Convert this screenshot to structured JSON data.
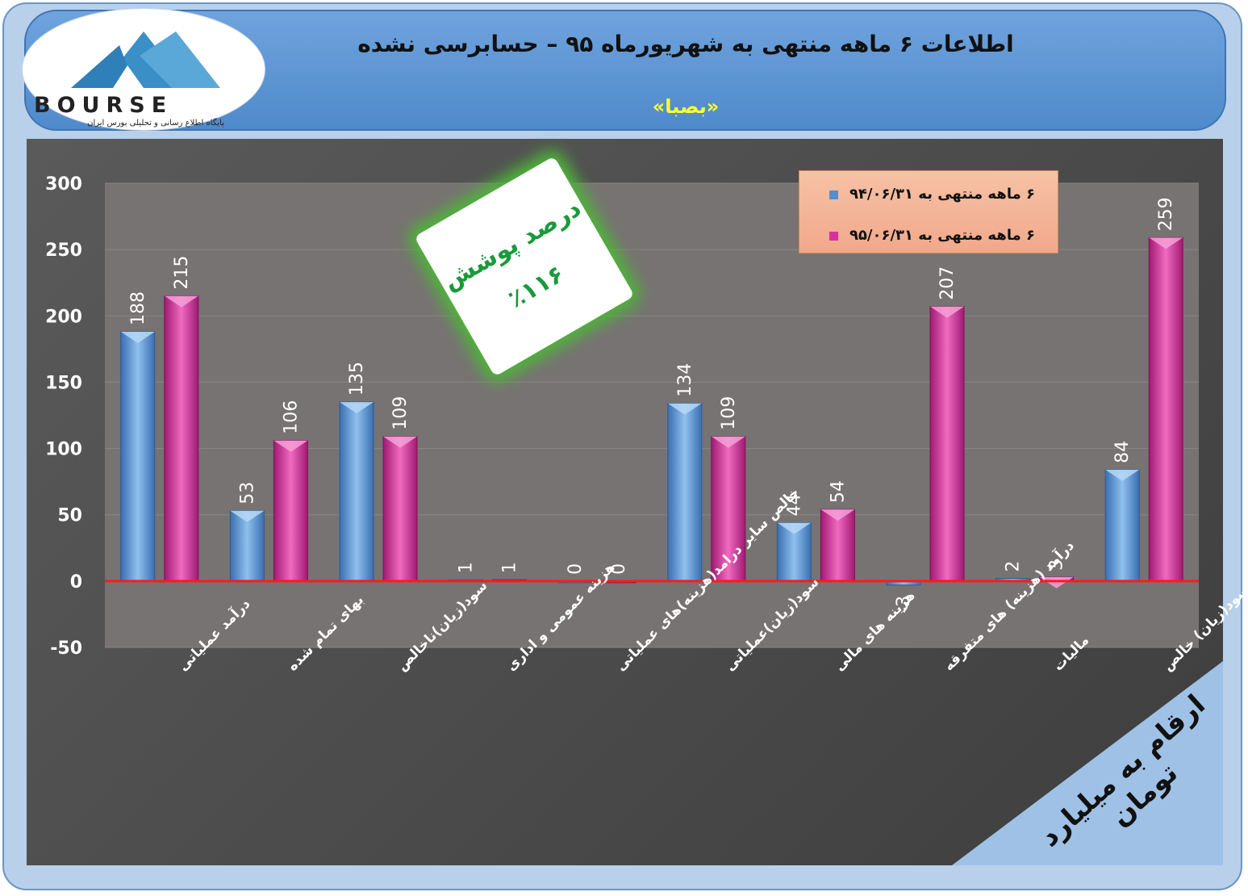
{
  "header": {
    "title": "اطلاعات ۶  ماهه منتهی به شهریورماه ۹۵ – حسابرسی نشده",
    "symbol": "«بصبا»"
  },
  "logo": {
    "word": "BOURSE",
    "tagline": "پایگاه اطلاع رسانی و تحلیلی بورس ایران"
  },
  "stamp": {
    "line1": "درصد پوشش",
    "line2": "٪۱۱۶"
  },
  "unit_note": "ارقام به میلیارد تومان",
  "colors": {
    "series1": "#4f8fd6",
    "series2": "#d6339a",
    "zero_line": "#ff1a1a",
    "plot_bg": "#777372"
  },
  "chart_data": {
    "type": "bar",
    "categories": [
      "درآمد عملیاتی",
      "بهای تمام شده",
      "سود(زیان)ناخالص",
      "هزینه عمومی و اداری",
      "خالص سایر درامد(هزینه)های عملیاتی",
      "سود(زیان)عملیاتی",
      "هزینه های مالی",
      "درآمد (هزینه) های متفرقه",
      "مالیات",
      "سود(زیان) خالص"
    ],
    "series": [
      {
        "name": "۶ ماهه منتهی به ۹۴/۰۶/۳۱",
        "values": [
          188,
          53,
          135,
          1,
          0,
          134,
          44,
          -3,
          2,
          84
        ]
      },
      {
        "name": "۶ ماهه منتهی به ۹۵/۰۶/۳۱",
        "values": [
          215,
          106,
          109,
          1,
          0,
          109,
          54,
          207,
          3,
          259
        ]
      }
    ],
    "yticks": [
      "300",
      "250",
      "200",
      "150",
      "100",
      "50",
      "0",
      "-50"
    ],
    "ylim": [
      -50,
      300
    ],
    "grid": true,
    "legend_position": "top-right"
  }
}
